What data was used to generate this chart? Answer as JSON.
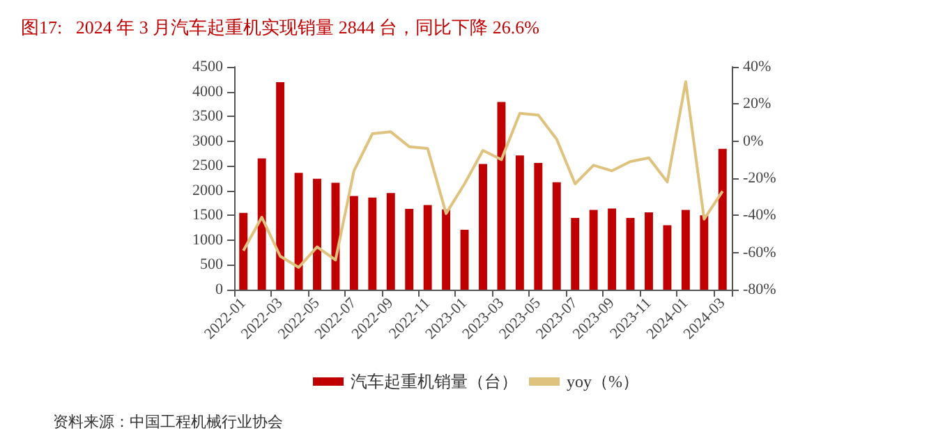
{
  "chart_data": {
    "type": "bar",
    "title": "图17:   2024 年 3 月汽车起重机实现销量 2844 台，同比下降 26.6%",
    "categories": [
      "2022-01",
      null,
      "2022-03",
      null,
      "2022-05",
      null,
      "2022-07",
      null,
      "2022-09",
      null,
      "2022-11",
      null,
      "2023-01",
      null,
      "2023-03",
      null,
      "2023-05",
      null,
      "2023-07",
      null,
      "2023-09",
      null,
      "2023-11",
      null,
      "2024-01",
      null,
      "2024-03"
    ],
    "series": [
      {
        "name": "汽车起重机销量（台）",
        "color": "#c00000",
        "values": [
          1550,
          2650,
          4190,
          2360,
          2240,
          2160,
          1890,
          1860,
          1950,
          1630,
          1710,
          1620,
          1210,
          2540,
          3790,
          2710,
          2560,
          2170,
          1450,
          1610,
          1640,
          1450,
          1560,
          1300,
          1610,
          1500,
          2844
        ]
      },
      {
        "name": "yoy（%）",
        "type": "line",
        "axis": "y2",
        "color": "#dfc27d",
        "values": [
          -59,
          -41,
          -62,
          -68,
          -57,
          -64,
          -16,
          4,
          5,
          -3,
          -4,
          -39,
          -23,
          -5,
          -10,
          15,
          14,
          1,
          -23,
          -13,
          -16,
          -11,
          -9,
          -22,
          32,
          -42,
          -27
        ]
      }
    ],
    "ylim": [
      0,
      4500
    ],
    "yticks": [
      0,
      500,
      1000,
      1500,
      2000,
      2500,
      3000,
      3500,
      4000,
      4500
    ],
    "y2lim": [
      -80,
      40
    ],
    "y2ticks": [
      {
        "value": -80,
        "label": "-80%"
      },
      {
        "value": -60,
        "label": "-60%"
      },
      {
        "value": -40,
        "label": "-40%"
      },
      {
        "value": -20,
        "label": "-20%"
      },
      {
        "value": 0,
        "label": "0%"
      },
      {
        "value": 20,
        "label": "20%"
      },
      {
        "value": 40,
        "label": "40%"
      }
    ],
    "grid": false,
    "legend": "bottom",
    "marker": "none",
    "line_style": "solid",
    "annotations": [
      "资料来源：中国工程机械行业协会"
    ]
  }
}
